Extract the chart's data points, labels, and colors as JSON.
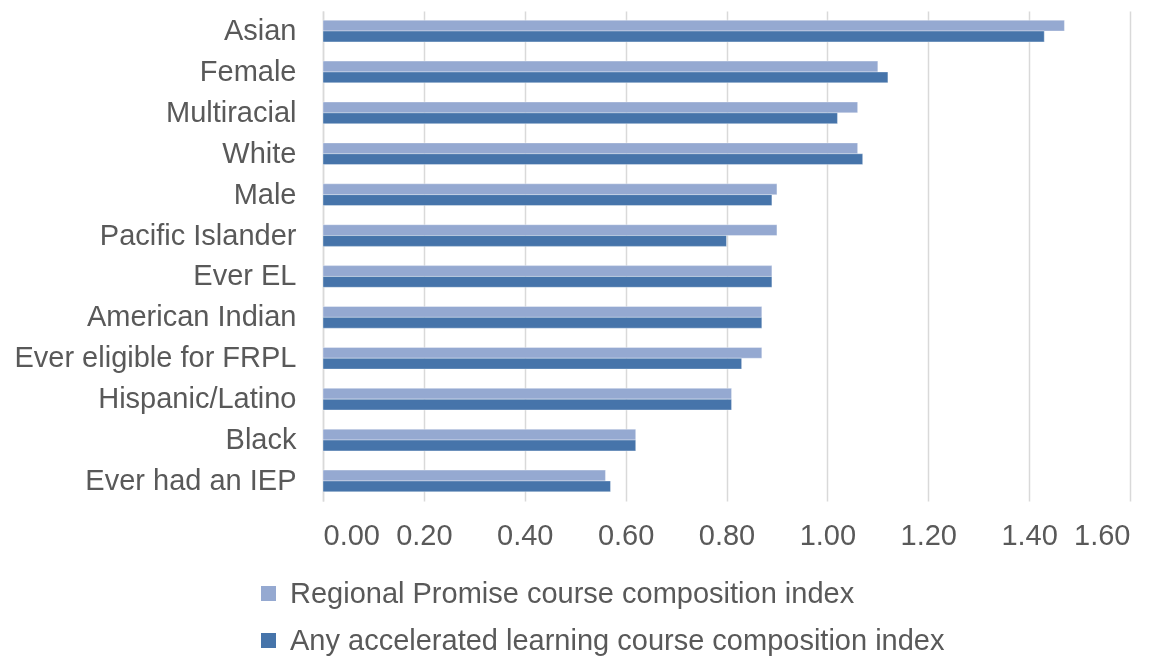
{
  "chart_data": {
    "type": "bar",
    "orientation": "horizontal",
    "categories": [
      "Asian",
      "Female",
      "Multiracial",
      "White",
      "Male",
      "Pacific Islander",
      "Ever EL",
      "American Indian",
      "Ever eligible for FRPL",
      "Hispanic/Latino",
      "Black",
      "Ever had an IEP"
    ],
    "series": [
      {
        "name": "Regional Promise course composition index",
        "color": "#95a9d1",
        "values": [
          1.47,
          1.1,
          1.06,
          1.06,
          0.9,
          0.9,
          0.89,
          0.87,
          0.87,
          0.81,
          0.62,
          0.56
        ]
      },
      {
        "name": "Any accelerated learning course composition index",
        "color": "#4674aa",
        "values": [
          1.43,
          1.12,
          1.02,
          1.07,
          0.89,
          0.8,
          0.89,
          0.87,
          0.83,
          0.81,
          0.62,
          0.57
        ]
      }
    ],
    "xlim": [
      0,
      1.6
    ],
    "xticks": [
      {
        "value": 0,
        "label": "0.00"
      },
      {
        "value": 0.2,
        "label": "0.20"
      },
      {
        "value": 0.4,
        "label": "0.40"
      },
      {
        "value": 0.6,
        "label": "0.60"
      },
      {
        "value": 0.8,
        "label": "0.80"
      },
      {
        "value": 1,
        "label": "1.00"
      },
      {
        "value": 1.2,
        "label": "1.20"
      },
      {
        "value": 1.4,
        "label": "1.40"
      },
      {
        "value": 1.6,
        "label": "1.60"
      }
    ],
    "grid": "x",
    "legend": "bottom"
  }
}
